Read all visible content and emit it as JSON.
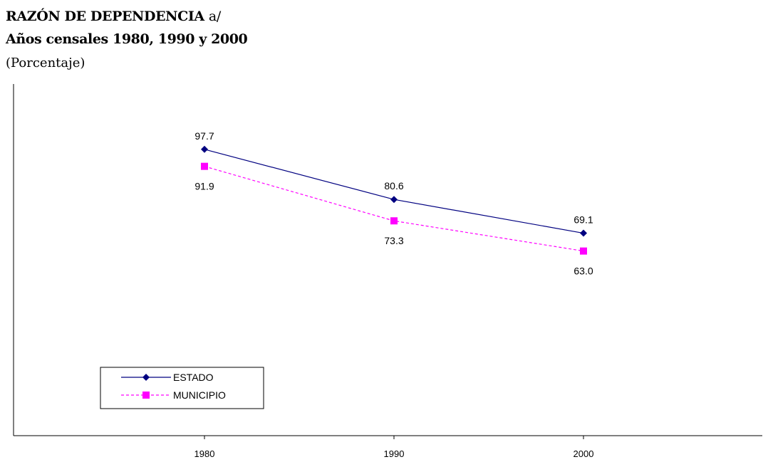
{
  "chart_data": {
    "type": "line",
    "title": "RAZÓN DE DEPENDENCIA",
    "title_suffix": "a/",
    "subtitle": "Años censales 1980, 1990 y 2000",
    "unit": "(Porcentaje)",
    "categories": [
      "1980",
      "1990",
      "2000"
    ],
    "ylim": [
      0,
      120
    ],
    "grid": false,
    "legend_position": "bottom-left",
    "series": [
      {
        "name": "ESTADO",
        "values": [
          97.7,
          80.6,
          69.1
        ],
        "labels": [
          "97.7",
          "80.6",
          "69.1"
        ],
        "color": "#000080",
        "line_style": "solid",
        "marker": "diamond"
      },
      {
        "name": "MUNICIPIO",
        "values": [
          91.9,
          73.3,
          63.0
        ],
        "labels": [
          "91.9",
          "73.3",
          "63.0"
        ],
        "color": "#ff00ff",
        "line_style": "dashed",
        "marker": "square"
      }
    ]
  }
}
